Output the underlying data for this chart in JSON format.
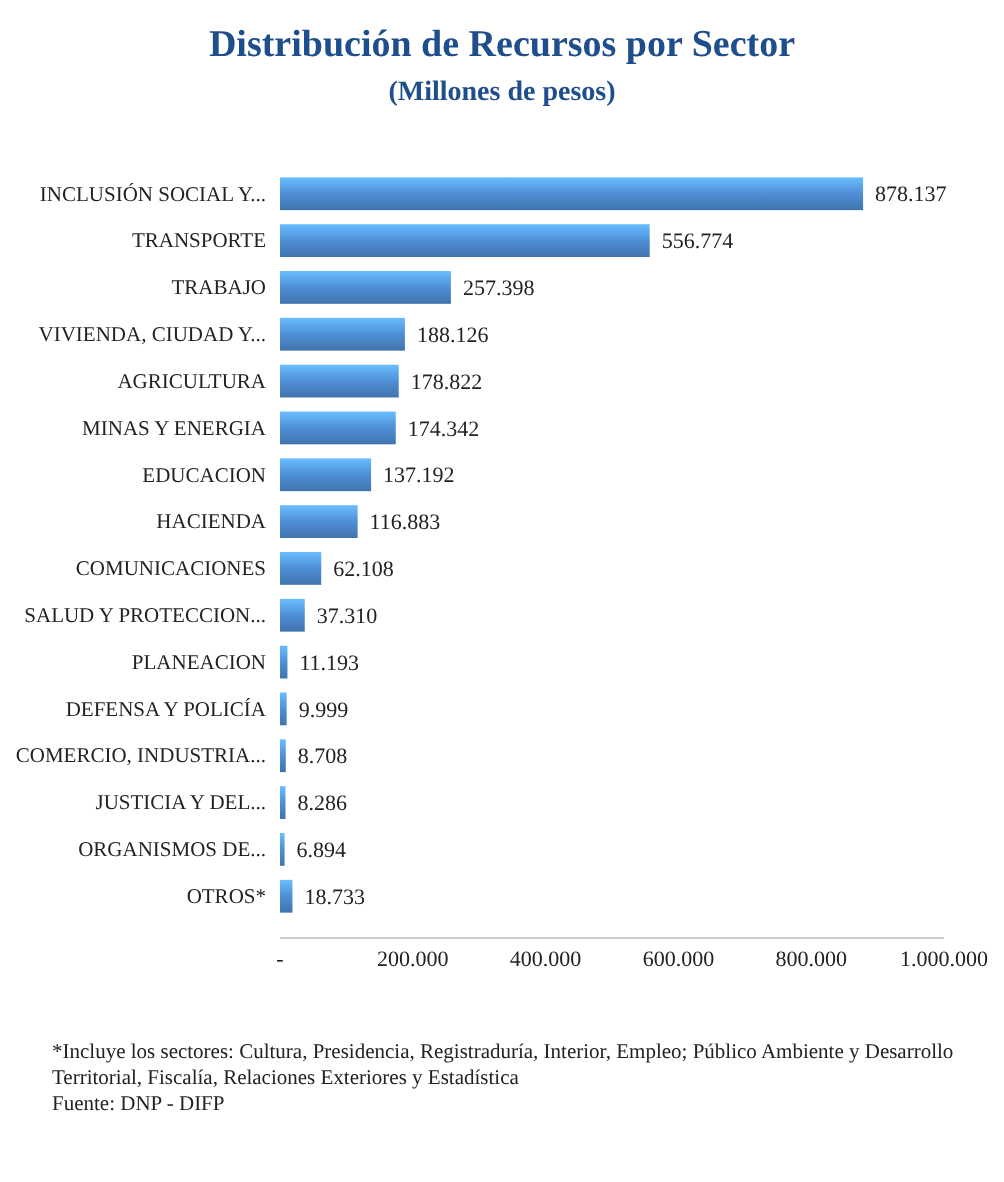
{
  "chart_data": {
    "type": "bar",
    "orientation": "horizontal",
    "title": "Distribución de Recursos por Sector",
    "subtitle": "(Millones de pesos)",
    "categories": [
      "INCLUSIÓN SOCIAL Y...",
      "TRANSPORTE",
      "TRABAJO",
      "VIVIENDA, CIUDAD Y...",
      "AGRICULTURA",
      "MINAS Y ENERGIA",
      "EDUCACION",
      "HACIENDA",
      "COMUNICACIONES",
      "SALUD Y PROTECCION...",
      "PLANEACION",
      "DEFENSA Y POLICÍA",
      "COMERCIO, INDUSTRIA...",
      "JUSTICIA Y DEL...",
      "ORGANISMOS DE...",
      "OTROS*"
    ],
    "values": [
      878137,
      556774,
      257398,
      188126,
      178822,
      174342,
      137192,
      116883,
      62108,
      37310,
      11193,
      9999,
      8708,
      8286,
      6894,
      18733
    ],
    "value_labels": [
      "878.137",
      "556.774",
      "257.398",
      "188.126",
      "178.822",
      "174.342",
      "137.192",
      "116.883",
      "62.108",
      "37.310",
      "11.193",
      "9.999",
      "8.708",
      "8.286",
      "6.894",
      "18.733"
    ],
    "color": "#4f8fd6",
    "xlim": [
      0,
      1000000
    ],
    "xticks": [
      {
        "value": 0,
        "label": "-"
      },
      {
        "value": 200000,
        "label": "200.000"
      },
      {
        "value": 400000,
        "label": "400.000"
      },
      {
        "value": 600000,
        "label": "600.000"
      },
      {
        "value": 800000,
        "label": "800.000"
      },
      {
        "value": 1000000,
        "label": "1.000.000"
      }
    ],
    "grid": false,
    "annotations": [
      "*Incluye los sectores:  Cultura, Presidencia, Registraduría, Interior, Empleo; Público Ambiente y Desarrollo Territorial, Fiscalía, Relaciones Exteriores y Estadística",
      "Fuente: DNP - DIFP"
    ]
  }
}
